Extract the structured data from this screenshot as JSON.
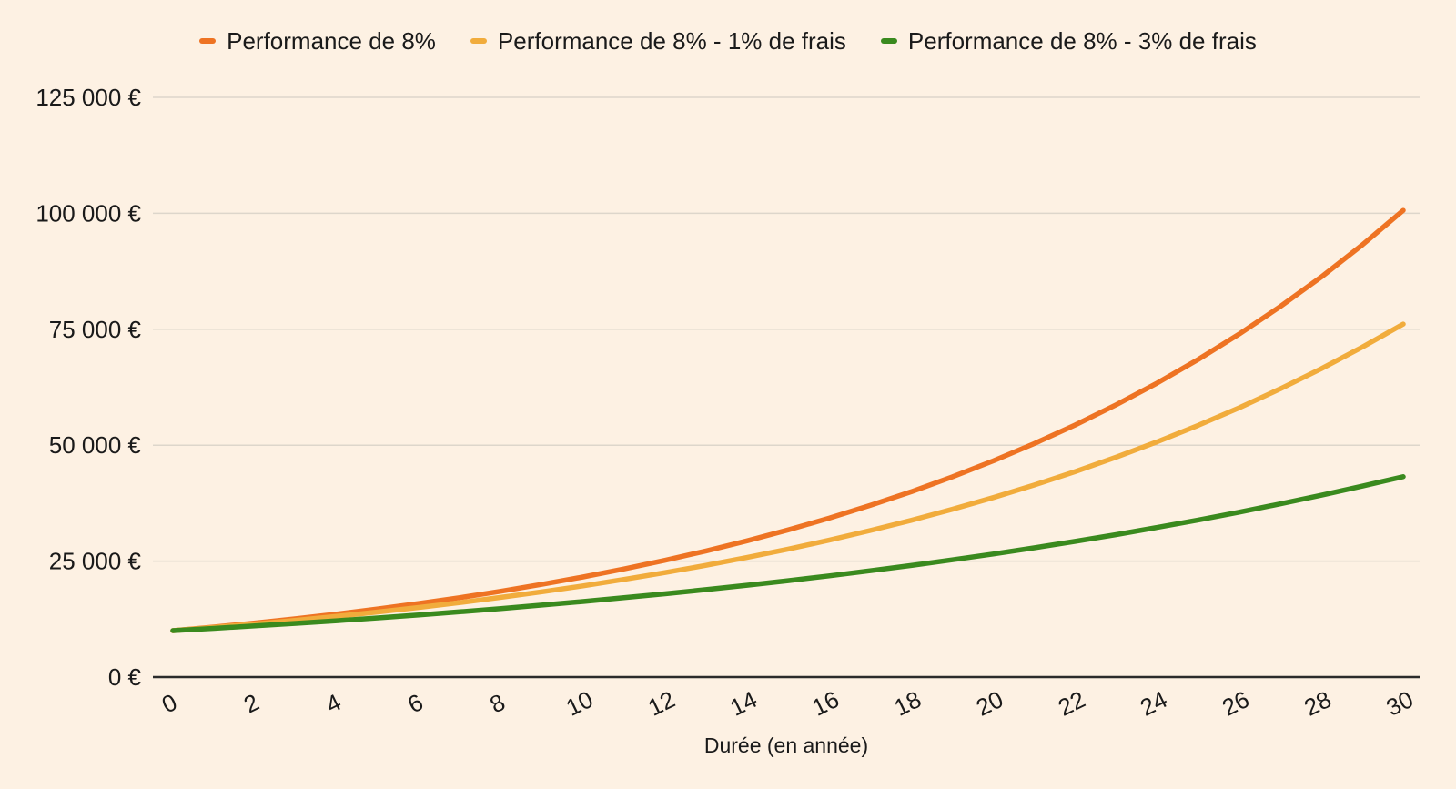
{
  "colors": {
    "background": "#fdf1e3",
    "grid": "#ddd6cb",
    "axis": "#2b2b2b",
    "text": "#1a1a1a"
  },
  "chart_data": {
    "type": "line",
    "title": "",
    "xlabel": "Durée (en année)",
    "ylabel": "",
    "xlim": [
      0,
      30
    ],
    "ylim": [
      0,
      125000
    ],
    "grid": "horizontal",
    "legend_position": "top",
    "x": [
      0,
      1,
      2,
      3,
      4,
      5,
      6,
      7,
      8,
      9,
      10,
      11,
      12,
      13,
      14,
      15,
      16,
      17,
      18,
      19,
      20,
      21,
      22,
      23,
      24,
      25,
      26,
      27,
      28,
      29,
      30
    ],
    "x_tick_values": [
      0,
      2,
      4,
      6,
      8,
      10,
      12,
      14,
      16,
      18,
      20,
      22,
      24,
      26,
      28,
      30
    ],
    "x_tick_labels": [
      "0",
      "2",
      "4",
      "6",
      "8",
      "10",
      "12",
      "14",
      "16",
      "18",
      "20",
      "22",
      "24",
      "26",
      "28",
      "30"
    ],
    "y_ticks": [
      {
        "value": 0,
        "label": "0 €"
      },
      {
        "value": 25000,
        "label": "25 000 €"
      },
      {
        "value": 50000,
        "label": "50 000 €"
      },
      {
        "value": 75000,
        "label": "75 000 €"
      },
      {
        "value": 100000,
        "label": "100 000 €"
      },
      {
        "value": 125000,
        "label": "125 000 €"
      }
    ],
    "series": [
      {
        "name": "Performance de 8%",
        "color": "#ee7323",
        "values": [
          10000,
          10800,
          11664,
          12597,
          13605,
          14693,
          15869,
          17138,
          18509,
          19990,
          21589,
          23316,
          25182,
          27196,
          29372,
          31722,
          34259,
          37000,
          39960,
          43157,
          46610,
          50338,
          54365,
          58715,
          63412,
          68485,
          73964,
          79881,
          86271,
          93173,
          100627
        ]
      },
      {
        "name": "Performance de 8% - 1% de frais",
        "color": "#f1ac3c",
        "values": [
          10000,
          10700,
          11449,
          12250,
          13108,
          14026,
          15007,
          16058,
          17182,
          18385,
          19672,
          21049,
          22522,
          24098,
          25785,
          27590,
          29522,
          31588,
          33799,
          36165,
          38697,
          41406,
          44304,
          47405,
          50724,
          54274,
          58074,
          62139,
          66488,
          71143,
          76123
        ]
      },
      {
        "name": "Performance de 8% - 3% de frais",
        "color": "#3a8a1e",
        "values": [
          10000,
          10500,
          11025,
          11576,
          12155,
          12763,
          13401,
          14071,
          14775,
          15513,
          16289,
          17103,
          17959,
          18856,
          19799,
          20789,
          21829,
          22920,
          24066,
          25270,
          26533,
          27860,
          29253,
          30715,
          32251,
          33864,
          35557,
          37335,
          39201,
          41161,
          43219
        ]
      }
    ]
  }
}
